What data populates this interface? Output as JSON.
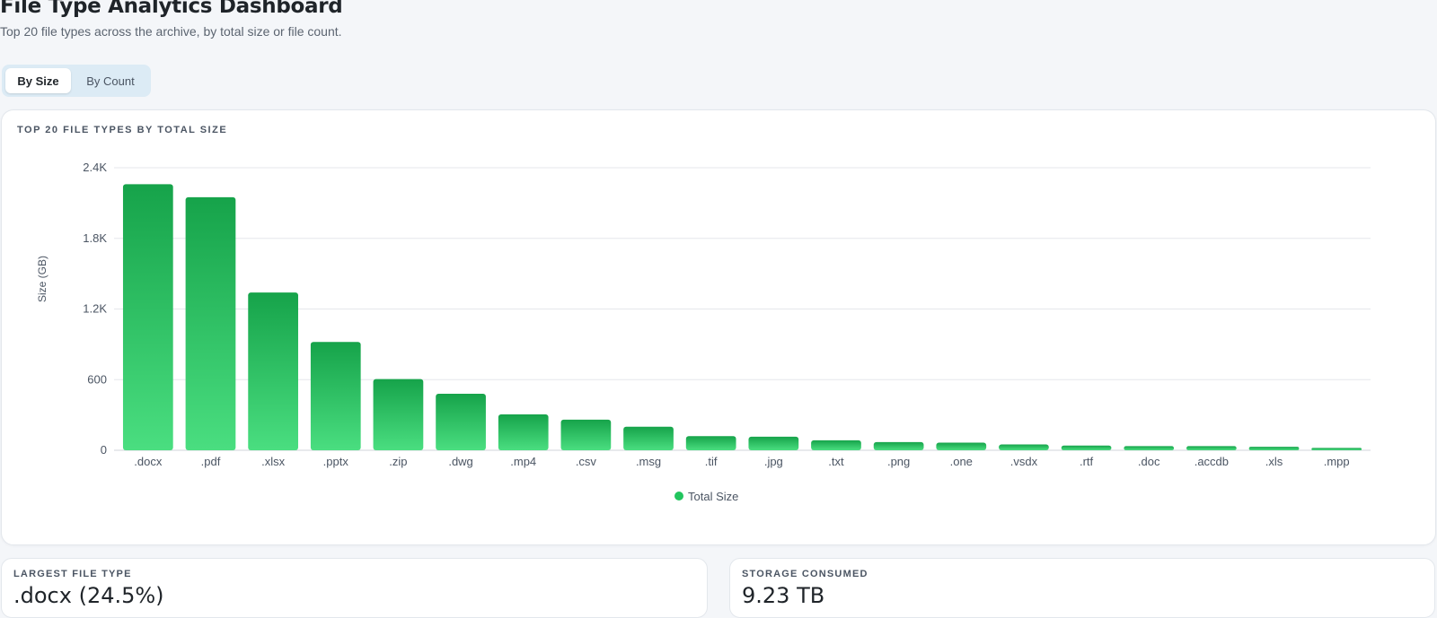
{
  "header": {
    "title": "File Type Analytics Dashboard",
    "subtitle": "Top 20 file types across the archive, by total size or file count."
  },
  "toggle": {
    "options": [
      "By Size",
      "By Count"
    ],
    "selected": "By Size"
  },
  "chart_card": {
    "title": "TOP 20 FILE TYPES BY TOTAL SIZE"
  },
  "colors": {
    "bar_top": "#16a34a",
    "bar_bottom": "#4ade80",
    "legend_dot": "#22c55e"
  },
  "chart_data": {
    "type": "bar",
    "title": "TOP 20 FILE TYPES BY TOTAL SIZE",
    "xlabel": "",
    "ylabel": "Size (GB)",
    "ylim": [
      0,
      2400
    ],
    "yticks": [
      0,
      600,
      1200,
      1800,
      2400
    ],
    "ytick_labels": [
      "0",
      "600",
      "1.2K",
      "1.8K",
      "2.4K"
    ],
    "grid": true,
    "legend_position": "bottom",
    "categories": [
      ".docx",
      ".pdf",
      ".xlsx",
      ".pptx",
      ".zip",
      ".dwg",
      ".mp4",
      ".csv",
      ".msg",
      ".tif",
      ".jpg",
      ".txt",
      ".png",
      ".one",
      ".vsdx",
      ".rtf",
      ".doc",
      ".accdb",
      ".xls",
      ".mpp"
    ],
    "series": [
      {
        "name": "Total Size",
        "values": [
          2260,
          2150,
          1340,
          920,
          605,
          480,
          305,
          260,
          200,
          120,
          115,
          85,
          70,
          65,
          50,
          40,
          35,
          35,
          30,
          20
        ]
      }
    ]
  },
  "stats": {
    "largest": {
      "label": "LARGEST FILE TYPE",
      "value": ".docx (24.5%)"
    },
    "storage": {
      "label": "STORAGE CONSUMED",
      "value": "9.23 TB"
    }
  }
}
